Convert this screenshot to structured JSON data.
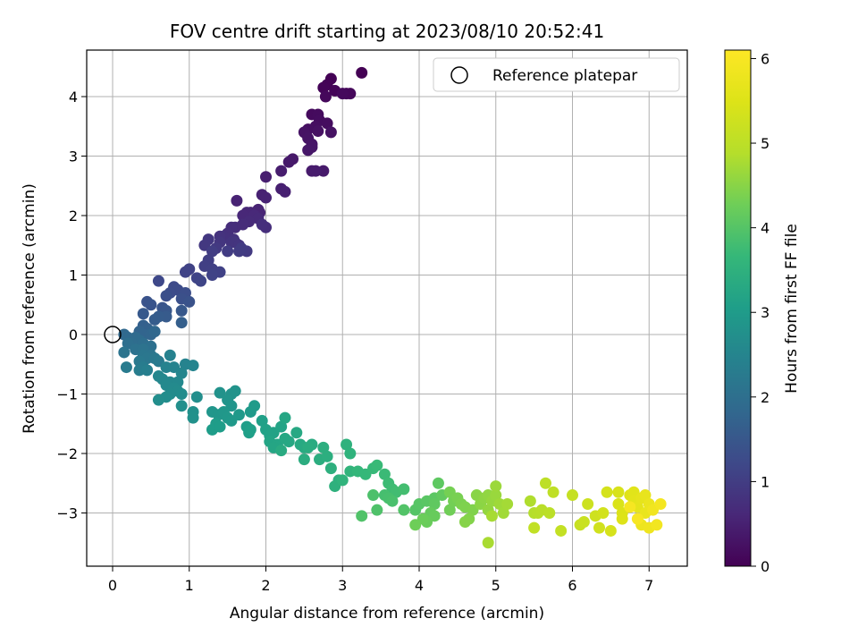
{
  "chart_data": {
    "type": "scatter",
    "title": "FOV centre drift starting at 2023/08/10 20:52:41",
    "xlabel": "Angular distance from reference (arcmin)",
    "ylabel": "Rotation from reference (arcmin)",
    "xlim": [
      -0.35,
      7.5
    ],
    "ylim": [
      -3.9,
      4.8
    ],
    "xticks": [
      0,
      1,
      2,
      3,
      4,
      5,
      6,
      7
    ],
    "yticks": [
      -3,
      -2,
      -1,
      0,
      1,
      2,
      3,
      4
    ],
    "xtick_labels": [
      "0",
      "1",
      "2",
      "3",
      "4",
      "5",
      "6",
      "7"
    ],
    "ytick_labels": [
      "−3",
      "−2",
      "−1",
      "0",
      "1",
      "2",
      "3",
      "4"
    ],
    "grid": true,
    "legend": {
      "position": "top-right",
      "entries": [
        "Reference platepar"
      ]
    },
    "reference_marker": {
      "name": "Reference platepar",
      "x": 0,
      "y": 0,
      "marker": "open-circle"
    },
    "colorbar": {
      "label": "Hours from first FF file",
      "range": [
        0,
        6.1
      ],
      "ticks": [
        0,
        1,
        2,
        3,
        4,
        5,
        6
      ],
      "tick_labels": [
        "0",
        "1",
        "2",
        "3",
        "4",
        "5",
        "6"
      ],
      "colormap": "viridis"
    },
    "series": [
      {
        "points": [
          [
            3.25,
            4.4
          ],
          [
            2.85,
            4.3
          ],
          [
            2.8,
            4.2
          ],
          [
            2.75,
            4.15
          ],
          [
            2.9,
            4.1
          ],
          [
            3.05,
            4.05
          ],
          [
            3.1,
            4.05
          ],
          [
            2.78,
            4.0
          ],
          [
            3.0,
            4.05
          ],
          [
            2.6,
            3.7
          ],
          [
            2.68,
            3.7
          ],
          [
            2.7,
            3.6
          ],
          [
            2.8,
            3.55
          ],
          [
            2.65,
            3.5
          ],
          [
            2.55,
            3.45
          ],
          [
            2.68,
            3.42
          ],
          [
            2.85,
            3.4
          ],
          [
            2.5,
            3.4
          ],
          [
            2.55,
            3.3
          ],
          [
            2.6,
            3.2
          ],
          [
            2.6,
            3.15
          ],
          [
            2.55,
            3.1
          ],
          [
            2.35,
            2.95
          ],
          [
            2.3,
            2.9
          ],
          [
            2.75,
            2.75
          ],
          [
            2.6,
            2.75
          ],
          [
            2.65,
            2.75
          ],
          [
            2.2,
            2.75
          ],
          [
            2.0,
            2.65
          ],
          [
            2.2,
            2.45
          ],
          [
            2.25,
            2.4
          ],
          [
            1.95,
            2.35
          ],
          [
            2.0,
            2.3
          ],
          [
            1.62,
            2.25
          ],
          [
            1.9,
            2.1
          ],
          [
            1.92,
            2.05
          ],
          [
            1.8,
            2.05
          ],
          [
            1.75,
            2.05
          ],
          [
            1.7,
            2.0
          ],
          [
            1.85,
            2.0
          ],
          [
            1.9,
            1.95
          ],
          [
            1.78,
            1.9
          ],
          [
            1.7,
            1.85
          ],
          [
            1.6,
            1.8
          ],
          [
            1.55,
            1.8
          ],
          [
            2.0,
            1.8
          ],
          [
            1.95,
            1.85
          ],
          [
            1.5,
            1.7
          ],
          [
            1.45,
            1.65
          ],
          [
            1.58,
            1.6
          ],
          [
            1.4,
            1.65
          ],
          [
            1.55,
            1.55
          ],
          [
            1.6,
            1.55
          ],
          [
            1.65,
            1.5
          ],
          [
            1.4,
            1.55
          ],
          [
            1.25,
            1.6
          ],
          [
            1.2,
            1.5
          ],
          [
            1.35,
            1.45
          ],
          [
            1.75,
            1.4
          ],
          [
            1.68,
            1.45
          ],
          [
            1.65,
            1.4
          ],
          [
            1.5,
            1.4
          ],
          [
            1.3,
            1.4
          ],
          [
            1.25,
            1.25
          ],
          [
            1.2,
            1.15
          ],
          [
            1.3,
            1.1
          ],
          [
            1.4,
            1.05
          ],
          [
            1.0,
            1.1
          ],
          [
            0.95,
            1.05
          ],
          [
            1.3,
            1.0
          ],
          [
            1.1,
            0.95
          ],
          [
            1.15,
            0.9
          ]
        ]
      },
      {
        "points": [
          [
            0.6,
            0.9
          ],
          [
            0.8,
            0.8
          ],
          [
            0.85,
            0.75
          ],
          [
            0.75,
            0.7
          ],
          [
            0.95,
            0.7
          ],
          [
            0.7,
            0.65
          ],
          [
            0.9,
            0.6
          ],
          [
            1.0,
            0.55
          ],
          [
            0.45,
            0.55
          ],
          [
            0.5,
            0.5
          ],
          [
            0.65,
            0.45
          ],
          [
            0.7,
            0.4
          ],
          [
            0.9,
            0.4
          ],
          [
            0.4,
            0.35
          ],
          [
            0.7,
            0.3
          ],
          [
            0.6,
            0.3
          ],
          [
            0.55,
            0.25
          ],
          [
            0.9,
            0.2
          ],
          [
            0.4,
            0.15
          ],
          [
            0.45,
            0.1
          ],
          [
            0.5,
            0.05
          ],
          [
            0.35,
            0.05
          ],
          [
            0.4,
            0.0
          ],
          [
            0.5,
            0.0
          ],
          [
            0.55,
            0.05
          ],
          [
            0.15,
            0.0
          ],
          [
            0.2,
            -0.05
          ],
          [
            0.3,
            -0.05
          ],
          [
            0.35,
            -0.1
          ],
          [
            0.25,
            -0.15
          ],
          [
            0.4,
            -0.15
          ],
          [
            0.2,
            -0.15
          ],
          [
            0.5,
            -0.2
          ],
          [
            0.3,
            -0.25
          ],
          [
            0.4,
            -0.25
          ],
          [
            0.15,
            -0.3
          ],
          [
            0.5,
            -0.35
          ],
          [
            0.4,
            -0.35
          ],
          [
            0.45,
            -0.4
          ],
          [
            0.55,
            -0.4
          ],
          [
            0.35,
            -0.45
          ],
          [
            0.6,
            -0.45
          ],
          [
            0.18,
            -0.55
          ],
          [
            0.4,
            -0.55
          ],
          [
            0.35,
            -0.6
          ],
          [
            0.45,
            -0.6
          ]
        ]
      },
      {
        "points": [
          [
            0.75,
            -0.35
          ],
          [
            0.7,
            -0.55
          ],
          [
            0.8,
            -0.55
          ],
          [
            0.95,
            -0.5
          ],
          [
            1.05,
            -0.52
          ],
          [
            0.9,
            -0.65
          ],
          [
            0.6,
            -0.7
          ],
          [
            0.65,
            -0.75
          ],
          [
            0.75,
            -0.8
          ],
          [
            0.85,
            -0.8
          ],
          [
            0.7,
            -0.85
          ],
          [
            0.8,
            -0.9
          ],
          [
            0.85,
            -0.95
          ],
          [
            0.75,
            -1.0
          ],
          [
            0.9,
            -1.0
          ],
          [
            0.7,
            -1.05
          ],
          [
            0.6,
            -1.1
          ],
          [
            1.1,
            -1.05
          ],
          [
            0.9,
            -1.2
          ],
          [
            1.05,
            -1.3
          ],
          [
            1.05,
            -1.4
          ],
          [
            1.4,
            -0.98
          ],
          [
            1.55,
            -1.0
          ],
          [
            1.6,
            -0.95
          ],
          [
            1.5,
            -1.1
          ],
          [
            1.55,
            -1.2
          ],
          [
            1.3,
            -1.3
          ],
          [
            1.38,
            -1.35
          ],
          [
            1.45,
            -1.3
          ],
          [
            1.5,
            -1.4
          ],
          [
            1.55,
            -1.45
          ],
          [
            1.65,
            -1.35
          ],
          [
            1.8,
            -1.3
          ],
          [
            1.85,
            -1.2
          ],
          [
            1.35,
            -1.5
          ],
          [
            1.3,
            -1.6
          ],
          [
            1.4,
            -1.55
          ],
          [
            1.75,
            -1.55
          ],
          [
            1.78,
            -1.65
          ],
          [
            1.8,
            -1.6
          ],
          [
            1.95,
            -1.45
          ],
          [
            2.0,
            -1.6
          ],
          [
            2.05,
            -1.7
          ],
          [
            2.1,
            -1.65
          ],
          [
            2.2,
            -1.55
          ],
          [
            2.05,
            -1.8
          ],
          [
            2.15,
            -1.85
          ],
          [
            2.1,
            -1.9
          ],
          [
            2.25,
            -1.4
          ],
          [
            2.25,
            -1.75
          ],
          [
            2.3,
            -1.8
          ],
          [
            2.4,
            -1.65
          ],
          [
            2.45,
            -1.85
          ],
          [
            2.5,
            -1.9
          ],
          [
            2.2,
            -1.95
          ],
          [
            2.6,
            -1.85
          ],
          [
            2.55,
            -1.9
          ],
          [
            2.5,
            -2.1
          ],
          [
            2.7,
            -2.1
          ],
          [
            2.75,
            -1.9
          ],
          [
            2.8,
            -2.05
          ],
          [
            2.85,
            -2.25
          ],
          [
            2.95,
            -2.45
          ],
          [
            2.9,
            -2.55
          ],
          [
            3.05,
            -1.85
          ],
          [
            3.1,
            -2.0
          ],
          [
            3.0,
            -2.45
          ],
          [
            3.1,
            -2.3
          ]
        ]
      },
      {
        "points": [
          [
            3.2,
            -2.3
          ],
          [
            3.3,
            -2.35
          ],
          [
            3.4,
            -2.25
          ],
          [
            3.45,
            -2.2
          ],
          [
            3.55,
            -2.35
          ],
          [
            3.6,
            -2.5
          ],
          [
            3.65,
            -2.6
          ],
          [
            3.7,
            -2.65
          ],
          [
            3.8,
            -2.6
          ],
          [
            3.55,
            -2.7
          ],
          [
            3.6,
            -2.75
          ],
          [
            3.65,
            -2.8
          ],
          [
            3.4,
            -2.7
          ],
          [
            3.45,
            -2.95
          ],
          [
            3.25,
            -3.05
          ],
          [
            3.8,
            -2.95
          ],
          [
            3.95,
            -2.95
          ],
          [
            4.0,
            -2.85
          ],
          [
            4.1,
            -2.8
          ],
          [
            4.2,
            -2.75
          ],
          [
            4.25,
            -2.5
          ],
          [
            4.2,
            -2.85
          ],
          [
            4.3,
            -2.7
          ],
          [
            4.15,
            -3.0
          ],
          [
            4.2,
            -3.05
          ],
          [
            4.1,
            -3.15
          ],
          [
            4.05,
            -3.1
          ],
          [
            3.95,
            -3.2
          ],
          [
            4.4,
            -2.95
          ],
          [
            4.45,
            -2.8
          ],
          [
            4.4,
            -2.65
          ],
          [
            4.5,
            -2.75
          ],
          [
            4.55,
            -2.85
          ],
          [
            4.6,
            -2.9
          ],
          [
            4.7,
            -2.95
          ],
          [
            4.65,
            -3.1
          ],
          [
            4.6,
            -3.15
          ],
          [
            4.75,
            -2.7
          ],
          [
            4.8,
            -2.85
          ],
          [
            4.85,
            -2.75
          ],
          [
            4.9,
            -2.7
          ],
          [
            4.9,
            -2.95
          ],
          [
            4.95,
            -2.8
          ],
          [
            5.0,
            -2.7
          ],
          [
            5.0,
            -2.55
          ],
          [
            5.05,
            -2.85
          ],
          [
            5.1,
            -3.0
          ],
          [
            5.15,
            -2.85
          ],
          [
            4.95,
            -3.05
          ],
          [
            4.9,
            -3.5
          ]
        ]
      },
      {
        "points": [
          [
            5.45,
            -2.8
          ],
          [
            5.5,
            -3.0
          ],
          [
            5.55,
            -3.0
          ],
          [
            5.6,
            -2.95
          ],
          [
            5.7,
            -3.0
          ],
          [
            5.65,
            -2.5
          ],
          [
            5.75,
            -2.65
          ],
          [
            5.5,
            -3.25
          ],
          [
            5.85,
            -3.3
          ],
          [
            6.0,
            -2.7
          ],
          [
            6.1,
            -3.2
          ],
          [
            6.15,
            -3.15
          ],
          [
            6.2,
            -2.85
          ],
          [
            6.3,
            -3.05
          ],
          [
            6.35,
            -3.25
          ],
          [
            6.4,
            -3.0
          ],
          [
            6.45,
            -2.65
          ],
          [
            6.5,
            -3.3
          ],
          [
            6.6,
            -2.65
          ],
          [
            6.6,
            -2.85
          ],
          [
            6.65,
            -3.0
          ],
          [
            6.65,
            -3.1
          ],
          [
            6.75,
            -2.7
          ],
          [
            6.8,
            -2.65
          ],
          [
            6.8,
            -2.8
          ],
          [
            6.85,
            -2.9
          ],
          [
            6.9,
            -2.75
          ],
          [
            6.95,
            -2.7
          ],
          [
            6.95,
            -3.0
          ],
          [
            7.0,
            -2.85
          ],
          [
            6.9,
            -3.2
          ],
          [
            7.0,
            -3.25
          ],
          [
            7.05,
            -2.95
          ],
          [
            7.1,
            -3.2
          ],
          [
            7.15,
            -2.85
          ],
          [
            6.75,
            -2.9
          ],
          [
            6.85,
            -3.1
          ]
        ]
      }
    ]
  }
}
